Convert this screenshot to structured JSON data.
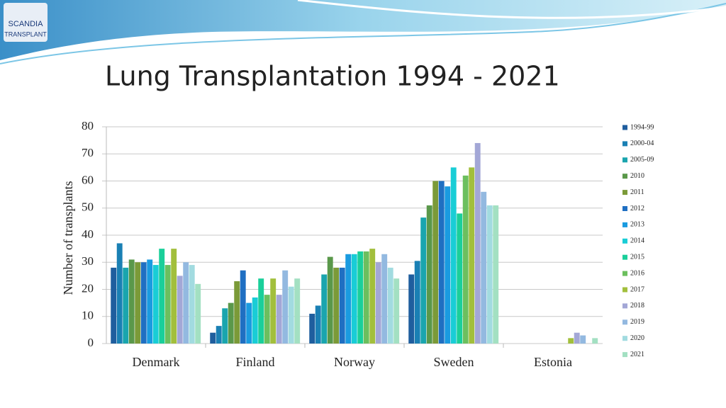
{
  "logo": {
    "name": "SCANDIA",
    "sub": "TRANSPLANT"
  },
  "chart_data": {
    "type": "bar",
    "title": "Lung Transplantation 1994 - 2021",
    "y_label": "Number of transplants",
    "categories": [
      "Denmark",
      "Finland",
      "Norway",
      "Sweden",
      "Estonia"
    ],
    "series": [
      {
        "name": "1994-99",
        "color": "#1f5e9e",
        "values": [
          28,
          4,
          11,
          25.5,
          0
        ]
      },
      {
        "name": "2000-04",
        "color": "#1a80b4",
        "values": [
          37,
          6.5,
          14,
          30.5,
          0
        ]
      },
      {
        "name": "2005-09",
        "color": "#1aa5ae",
        "values": [
          28,
          13,
          25.5,
          46.5,
          0
        ]
      },
      {
        "name": "2010",
        "color": "#5a984a",
        "values": [
          31,
          15,
          32,
          51,
          0
        ]
      },
      {
        "name": "2011",
        "color": "#7b9a38",
        "values": [
          30,
          23,
          28,
          60,
          0
        ]
      },
      {
        "name": "2012",
        "color": "#1f6fc2",
        "values": [
          30,
          27,
          28,
          60,
          0
        ]
      },
      {
        "name": "2013",
        "color": "#1a9be0",
        "values": [
          31,
          15,
          33,
          58,
          0
        ]
      },
      {
        "name": "2014",
        "color": "#19cdd6",
        "values": [
          29,
          17,
          33,
          65,
          0
        ]
      },
      {
        "name": "2015",
        "color": "#1acf9a",
        "values": [
          35,
          24,
          34,
          48,
          0
        ]
      },
      {
        "name": "2016",
        "color": "#6cbf5e",
        "values": [
          29,
          18,
          34,
          62,
          0
        ]
      },
      {
        "name": "2017",
        "color": "#a2bf3c",
        "values": [
          35,
          24,
          35,
          65,
          2
        ]
      },
      {
        "name": "2018",
        "color": "#a3a7d6",
        "values": [
          25,
          18,
          30,
          74,
          4
        ]
      },
      {
        "name": "2019",
        "color": "#93b9e0",
        "values": [
          30,
          27,
          33,
          56,
          3
        ]
      },
      {
        "name": "2020",
        "color": "#a2dbe0",
        "values": [
          29,
          21,
          28,
          51,
          0
        ]
      },
      {
        "name": "2021",
        "color": "#a3e0c2",
        "values": [
          22,
          24,
          24,
          51,
          2
        ]
      }
    ],
    "ylim": [
      0,
      80
    ],
    "yticks": [
      0,
      10,
      20,
      30,
      40,
      50,
      60,
      70,
      80
    ],
    "grid": true,
    "legend": "right"
  }
}
